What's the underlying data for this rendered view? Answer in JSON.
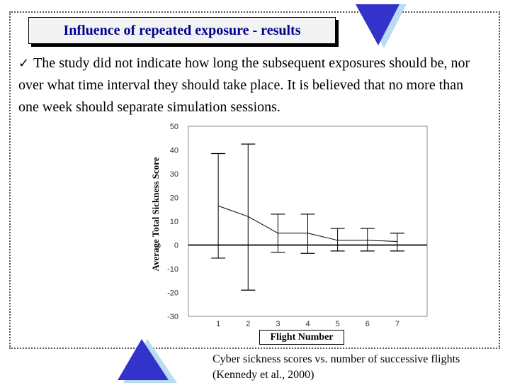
{
  "slide": {
    "title": "Influence of repeated exposure - results",
    "bullet_text": "The study did not indicate how long the subsequent exposures should be, nor over what time interval they should take place. It is believed that no more than one week should separate simulation sessions.",
    "caption": "Cyber sickness scores vs. number of successive flights (Kennedy et al., 2000)",
    "accent_color": "#3333cc",
    "title_color": "#000090"
  },
  "icons": {
    "bullet": "checkmark-icon",
    "top_triangle": "down-triangle-icon",
    "bottom_triangle": "up-triangle-icon"
  },
  "chart_data": {
    "type": "line",
    "xlabel": "Flight Number",
    "ylabel": "Average Total Sickness Score",
    "x": [
      1,
      2,
      3,
      4,
      5,
      6,
      7
    ],
    "xlim": [
      0,
      8
    ],
    "ylim": [
      -30,
      50
    ],
    "yticks": [
      50,
      40,
      30,
      20,
      10,
      0,
      -10,
      -20,
      -30
    ],
    "xticks": [
      1,
      2,
      3,
      4,
      5,
      6,
      7
    ],
    "series": [
      {
        "values": [
          16.5,
          12,
          5,
          5,
          2,
          2,
          1.5
        ],
        "error_low": [
          -5.5,
          -19,
          -3,
          -3.5,
          -2.5,
          -2.5,
          -2.5
        ],
        "error_high": [
          38.5,
          42.5,
          13,
          13,
          7,
          7,
          5
        ]
      }
    ],
    "zero_line": true,
    "grid": false
  }
}
